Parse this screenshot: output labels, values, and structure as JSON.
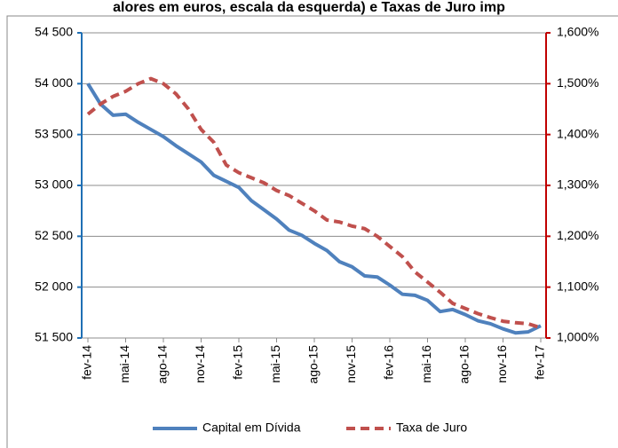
{
  "chart_data": {
    "type": "line",
    "title": "alores em euros, escala da esquerda) e Taxas de Juro imp",
    "categories": [
      "fev-14",
      null,
      null,
      "mai-14",
      null,
      null,
      "ago-14",
      null,
      null,
      "nov-14",
      null,
      null,
      "fev-15",
      null,
      null,
      "mai-15",
      null,
      null,
      "ago-15",
      null,
      null,
      "nov-15",
      null,
      null,
      "fev-16",
      null,
      null,
      "mai-16",
      null,
      null,
      "ago-16",
      null,
      null,
      "nov-16",
      null,
      null,
      "fev-17"
    ],
    "series": [
      {
        "name": "Capital em Dívida",
        "color": "#4f81bd",
        "axis": "y",
        "values": [
          54000,
          53800,
          53690,
          53700,
          53620,
          53550,
          53480,
          53390,
          53310,
          53230,
          53100,
          53040,
          52980,
          52850,
          52760,
          52670,
          52560,
          52510,
          52430,
          52360,
          52250,
          52200,
          52110,
          52100,
          52020,
          51930,
          51920,
          51870,
          51760,
          51780,
          51730,
          51670,
          51640,
          51590,
          51550,
          51560,
          51620
        ]
      },
      {
        "name": "Taxa de Juro",
        "color": "#c0504d",
        "axis": "y2",
        "dashed": true,
        "values": [
          1.44,
          1.46,
          1.475,
          1.485,
          1.5,
          1.51,
          1.5,
          1.48,
          1.45,
          1.41,
          1.385,
          1.34,
          1.325,
          1.315,
          1.305,
          1.29,
          1.28,
          1.265,
          1.25,
          1.232,
          1.228,
          1.22,
          1.215,
          1.2,
          1.18,
          1.16,
          1.13,
          1.11,
          1.09,
          1.068,
          1.058,
          1.048,
          1.04,
          1.033,
          1.03,
          1.028,
          1.02
        ]
      }
    ],
    "ylim": [
      51500,
      54500
    ],
    "yticks": [
      {
        "value": 51500,
        "label": "51 500"
      },
      {
        "value": 52000,
        "label": "52 000"
      },
      {
        "value": 52500,
        "label": "52 500"
      },
      {
        "value": 53000,
        "label": "53 000"
      },
      {
        "value": 53500,
        "label": "53 500"
      },
      {
        "value": 54000,
        "label": "54 000"
      },
      {
        "value": 54500,
        "label": "54 500"
      }
    ],
    "y2lim": [
      1.0,
      1.6
    ],
    "y2ticks": [
      {
        "value": 1.0,
        "label": "1,000%"
      },
      {
        "value": 1.1,
        "label": "1,100%"
      },
      {
        "value": 1.2,
        "label": "1,200%"
      },
      {
        "value": 1.3,
        "label": "1,300%"
      },
      {
        "value": 1.4,
        "label": "1,400%"
      },
      {
        "value": 1.5,
        "label": "1,500%"
      },
      {
        "value": 1.6,
        "label": "1,600%"
      }
    ],
    "y_axis_color": "#1f6fb4",
    "y2_axis_color": "#c00000",
    "grid": true,
    "legend": "bottom"
  }
}
